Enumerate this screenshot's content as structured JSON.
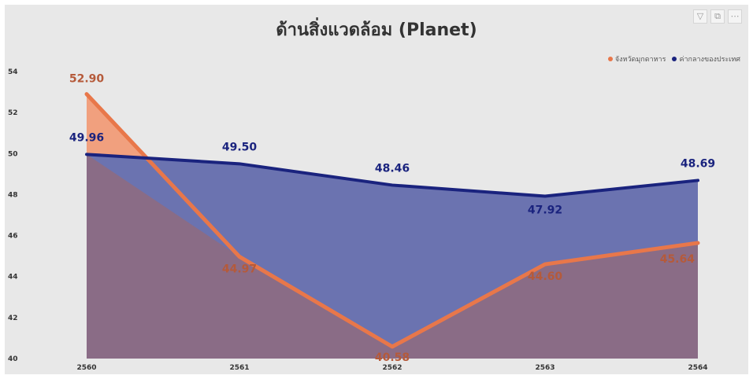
{
  "toolbar": {
    "filter_icon": "filter-icon",
    "focus_icon": "focus-mode-icon",
    "more_icon": "more-options-icon"
  },
  "colors": {
    "province_line": "#e8774a",
    "province_fill": "#f1a07e",
    "national_line": "#1a237e",
    "national_fill": "#6b73b0",
    "overlap_fill": "#8a6c86",
    "background": "#e8e8e8"
  },
  "chart_data": {
    "type": "area",
    "title": "ด้านสิ่งแวดล้อม (Planet)",
    "xlabel": "",
    "ylabel": "",
    "categories": [
      "2560",
      "2561",
      "2562",
      "2563",
      "2564"
    ],
    "yticks": [
      "40",
      "42",
      "44",
      "46",
      "48",
      "50",
      "52",
      "54"
    ],
    "ylim": [
      40,
      54
    ],
    "legend_position": "top-right",
    "grid": false,
    "series": [
      {
        "name": "จังหวัดมุกดาหาร",
        "values": [
          52.9,
          44.97,
          40.58,
          44.6,
          45.64
        ],
        "labels": [
          "52.90",
          "44.97",
          "40.58",
          "44.60",
          "45.64"
        ]
      },
      {
        "name": "ค่ากลางของประเทศ",
        "values": [
          49.96,
          49.5,
          48.46,
          47.92,
          48.69
        ],
        "labels": [
          "49.96",
          "49.50",
          "48.46",
          "47.92",
          "48.69"
        ]
      }
    ]
  }
}
